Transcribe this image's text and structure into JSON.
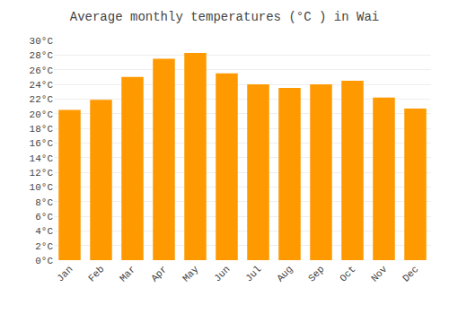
{
  "chart_data": {
    "type": "bar",
    "title": "Average monthly temperatures (°C ) in Wai",
    "categories": [
      "Jan",
      "Feb",
      "Mar",
      "Apr",
      "May",
      "Jun",
      "Jul",
      "Aug",
      "Sep",
      "Oct",
      "Nov",
      "Dec"
    ],
    "values": [
      20.5,
      21.9,
      25.0,
      27.5,
      28.3,
      25.5,
      24.0,
      23.5,
      24.0,
      24.5,
      22.2,
      20.7
    ],
    "color": "#FF9900",
    "ylim": [
      0,
      30
    ],
    "yticks": [
      {
        "value": 0,
        "label": "0°C"
      },
      {
        "value": 2,
        "label": "2°C"
      },
      {
        "value": 4,
        "label": "4°C"
      },
      {
        "value": 6,
        "label": "6°C"
      },
      {
        "value": 8,
        "label": "8°C"
      },
      {
        "value": 10,
        "label": "10°C"
      },
      {
        "value": 12,
        "label": "12°C"
      },
      {
        "value": 14,
        "label": "14°C"
      },
      {
        "value": 16,
        "label": "16°C"
      },
      {
        "value": 18,
        "label": "18°C"
      },
      {
        "value": 20,
        "label": "20°C"
      },
      {
        "value": 22,
        "label": "22°C"
      },
      {
        "value": 24,
        "label": "24°C"
      },
      {
        "value": 26,
        "label": "26°C"
      },
      {
        "value": 28,
        "label": "28°C"
      },
      {
        "value": 30,
        "label": "30°C"
      }
    ],
    "grid": true
  }
}
